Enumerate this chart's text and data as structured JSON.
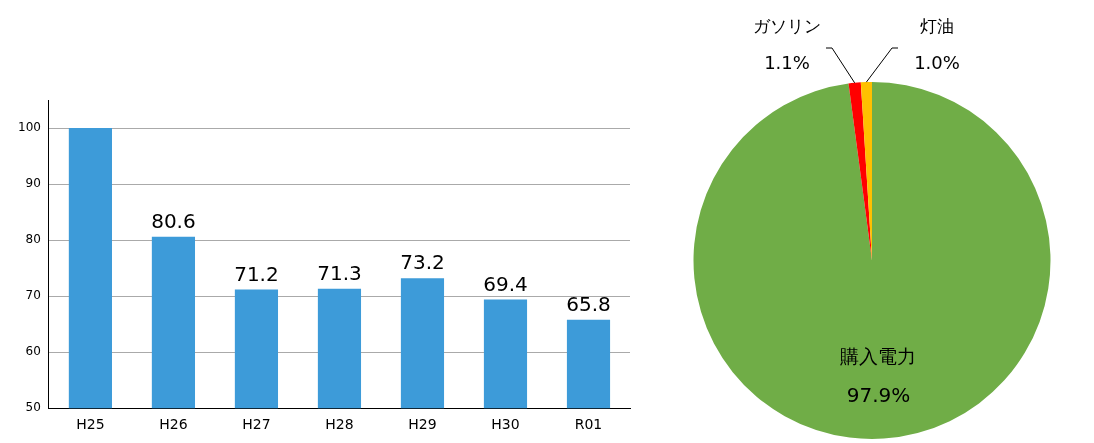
{
  "chart_data": [
    {
      "type": "bar",
      "categories": [
        "H25",
        "H26",
        "H27",
        "H28",
        "H29",
        "H30",
        "R01"
      ],
      "values": [
        100,
        80.6,
        71.2,
        71.3,
        73.2,
        69.4,
        65.8
      ],
      "color": "#3d9bd9",
      "value_labels": [
        null,
        "80.6",
        "71.2",
        "71.3",
        "73.2",
        "69.4",
        "65.8"
      ],
      "ylim": [
        50,
        105
      ],
      "yticks": [
        50,
        60,
        70,
        80,
        90,
        100
      ],
      "grid": "y",
      "legend": false
    },
    {
      "type": "pie",
      "categories": [
        "購入電力",
        "ガソリン",
        "灯油"
      ],
      "values": [
        97.9,
        1.1,
        1.0
      ],
      "colors": [
        "#70ad47",
        "#ff0000",
        "#ffc000"
      ],
      "value_labels": [
        "97.9%",
        "1.1%",
        "1.0%"
      ],
      "legend": false
    }
  ]
}
